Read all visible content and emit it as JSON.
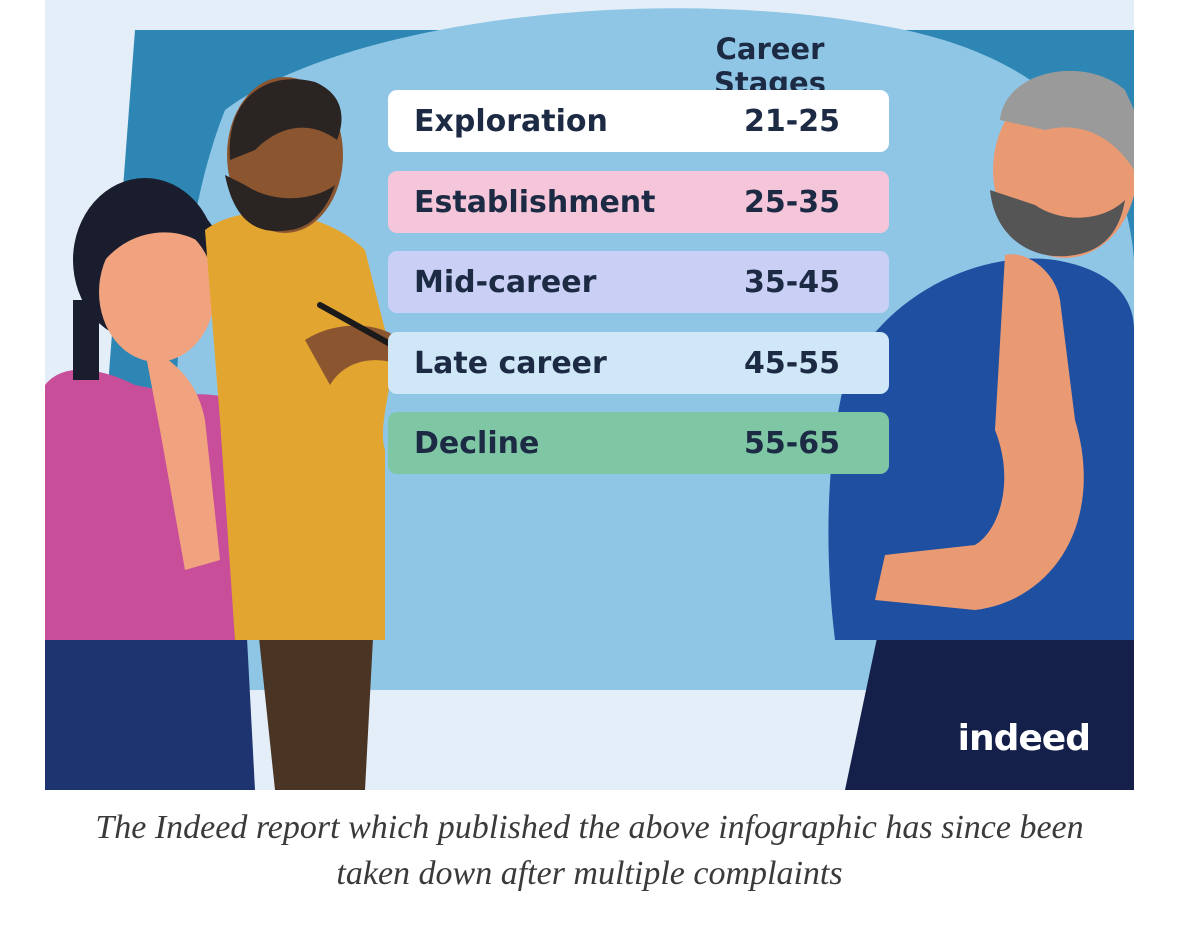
{
  "infographic": {
    "title": "Career Stages",
    "stages": [
      {
        "name": "Exploration",
        "range": "21-25",
        "color": "#ffffff"
      },
      {
        "name": "Establishment",
        "range": "25-35",
        "color": "#f5c6da"
      },
      {
        "name": "Mid-career",
        "range": "35-45",
        "color": "#c9cff5"
      },
      {
        "name": "Late career",
        "range": "45-55",
        "color": "#cfe7f6"
      },
      {
        "name": "Decline",
        "range": "55-65",
        "color": "#7ec6a4"
      }
    ],
    "logo_text": "indeed"
  },
  "caption": {
    "line1": "The Indeed report which published the above infographic has since been",
    "line2": "taken down after multiple complaints"
  },
  "colors": {
    "background": "#e4eef8",
    "board_dark": "#2d86b3",
    "board_light": "#8fc6e6",
    "text_dark": "#1c2a44"
  }
}
